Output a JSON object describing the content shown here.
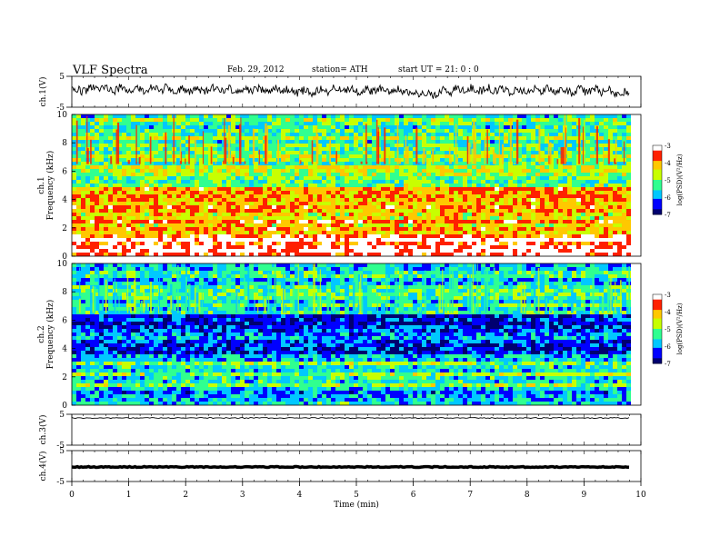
{
  "header": {
    "title": "VLF  Spectra",
    "date": "Feb. 29, 2012",
    "station": "station= ATH",
    "start": "start  UT  =    21: 0   : 0"
  },
  "colors": {
    "background": "#ffffff",
    "axis": "#000000",
    "colormap": [
      "#000070",
      "#0000ff",
      "#00c8ff",
      "#30ff90",
      "#c8ff00",
      "#ffc800",
      "#ff2000",
      "#ffffff"
    ]
  },
  "chart_data": [
    {
      "type": "line",
      "panel": "ch1-waveform",
      "ylabel": "ch.1(V)",
      "ylim": [
        -5,
        5
      ],
      "yticks": [
        "5",
        "-5"
      ],
      "x_range_min": [
        0,
        9.8
      ],
      "approx_level_V": [
        0.3,
        1.2,
        0.6,
        1.0,
        0.2,
        0.9,
        0.5,
        0.7,
        -0.2,
        0.8,
        0.4,
        0.6,
        -1.0,
        0.5,
        0.9,
        0.3,
        0.6,
        0.2,
        0.5,
        -0.8
      ]
    },
    {
      "type": "heatmap",
      "panel": "ch1-spectrogram",
      "ylabel": "ch.1\nFrequency  (kHz)",
      "ylim": [
        0,
        10
      ],
      "yticks": [
        "0",
        "2",
        "4",
        "6",
        "8",
        "10"
      ],
      "colorbar_label": "log(PSD)(V²/Hz)",
      "colorbar_ticks": [
        "-3",
        "-4",
        "-5",
        "-6",
        "-7"
      ],
      "frequency_bands_kHz": [
        {
          "from": 0,
          "to": 1.2,
          "log_psd": -3.2
        },
        {
          "from": 1.2,
          "to": 3.6,
          "log_psd": -4.0
        },
        {
          "from": 3.6,
          "to": 5.0,
          "log_psd": -4.2
        },
        {
          "from": 5.0,
          "to": 6.5,
          "log_psd": -5.0
        },
        {
          "from": 6.5,
          "to": 10,
          "log_psd": -5.2
        }
      ]
    },
    {
      "type": "heatmap",
      "panel": "ch2-spectrogram",
      "ylabel": "ch.2\nFrequency  (kHz)",
      "ylim": [
        0,
        10
      ],
      "yticks": [
        "0",
        "2",
        "4",
        "6",
        "8",
        "10"
      ],
      "colorbar_label": "log(PSD)(V²/Hz)",
      "colorbar_ticks": [
        "-3",
        "-4",
        "-5",
        "-6",
        "-7"
      ],
      "frequency_bands_kHz": [
        {
          "from": 0,
          "to": 1.0,
          "log_psd": -6.0
        },
        {
          "from": 1.0,
          "to": 3.2,
          "log_psd": -5.4
        },
        {
          "from": 3.2,
          "to": 6.5,
          "log_psd": -6.3
        },
        {
          "from": 6.5,
          "to": 10,
          "log_psd": -5.5
        }
      ]
    },
    {
      "type": "line",
      "panel": "ch3-waveform",
      "ylabel": "ch.3(V)",
      "ylim": [
        -5,
        5
      ],
      "yticks": [
        "5",
        "-5"
      ],
      "approx_level_V": 3.8
    },
    {
      "type": "line",
      "panel": "ch4-waveform",
      "ylabel": "ch.4(V)",
      "ylim": [
        -5,
        5
      ],
      "yticks": [
        "5",
        "-5"
      ],
      "approx_level_V": -0.3
    }
  ],
  "x_axis": {
    "label": "Time  (min)",
    "range": [
      0,
      10
    ],
    "ticks": [
      "0",
      "1",
      "2",
      "3",
      "4",
      "5",
      "6",
      "7",
      "8",
      "9",
      "10"
    ]
  }
}
